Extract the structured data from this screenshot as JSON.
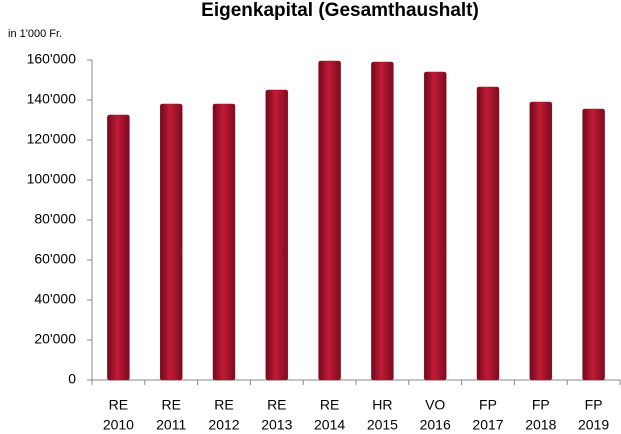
{
  "chart_data": {
    "type": "bar",
    "title": "Eigenkapital (Gesamthaushalt)",
    "y_axis_label": "in 1'000 Fr.",
    "categories": [
      [
        "RE",
        "2010"
      ],
      [
        "RE",
        "2011"
      ],
      [
        "RE",
        "2012"
      ],
      [
        "RE",
        "2013"
      ],
      [
        "RE",
        "2014"
      ],
      [
        "HR",
        "2015"
      ],
      [
        "VO",
        "2016"
      ],
      [
        "FP",
        "2017"
      ],
      [
        "FP",
        "2018"
      ],
      [
        "FP",
        "2019"
      ]
    ],
    "values": [
      132500,
      138000,
      138000,
      145000,
      159500,
      159000,
      154000,
      146500,
      139000,
      135500
    ],
    "color": "#a3142b",
    "ylim": [
      0,
      160000
    ],
    "yticks": [
      0,
      {
        "value": 20000,
        "label": "20'000"
      },
      {
        "value": 40000,
        "label": "40'000"
      },
      {
        "value": 60000,
        "label": "60'000"
      },
      {
        "value": 80000,
        "label": "80'000"
      },
      {
        "value": 100000,
        "label": "100'000"
      },
      {
        "value": 120000,
        "label": "120'000"
      },
      {
        "value": 140000,
        "label": "140'000"
      },
      {
        "value": 160000,
        "label": "160'000"
      }
    ],
    "grid": false
  }
}
